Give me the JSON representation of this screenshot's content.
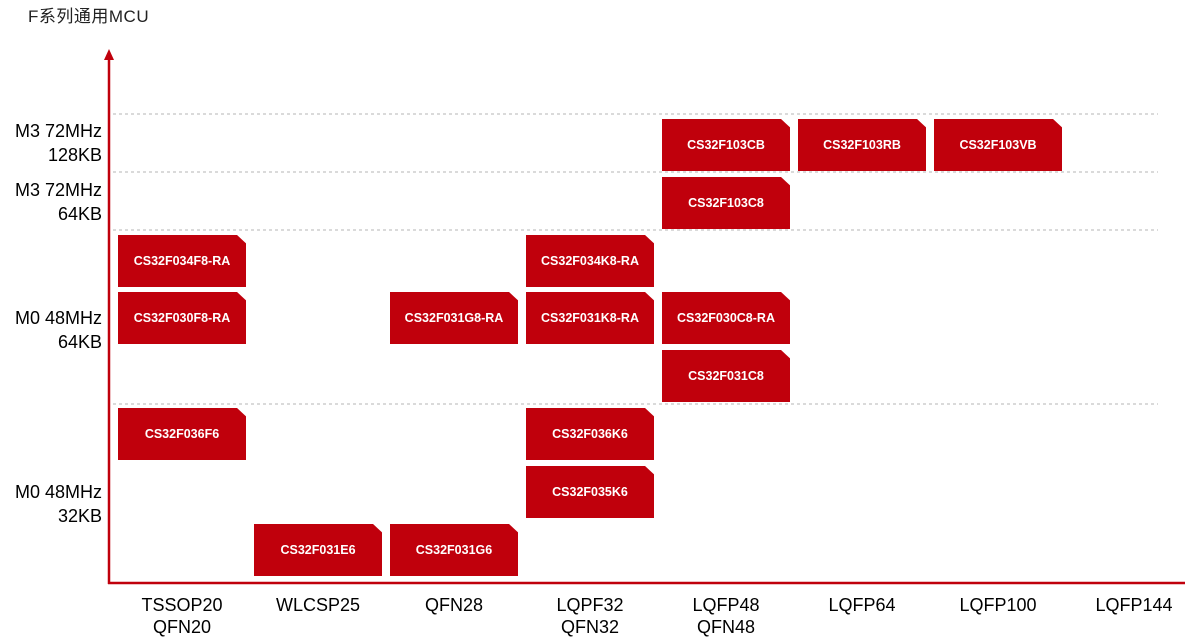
{
  "title": "F系列通用MCU",
  "chart_data": {
    "type": "table",
    "title": "F系列通用MCU",
    "columns": [
      "TSSOP20\nQFN20",
      "WLCSP25",
      "QFN28",
      "LQPF32\nQFN32",
      "LQFP48\nQFN48",
      "LQFP64",
      "LQFP100",
      "LQFP144"
    ],
    "rows": [
      "M3 72MHz\n128KB",
      "M3 72MHz\n64KB",
      "M0 48MHz\n64KB",
      "M0 48MHz\n32KB"
    ],
    "cells": [
      {
        "label": "CS32F103CB",
        "row": "M3 72MHz\n128KB",
        "column": "LQFP48\nQFN48"
      },
      {
        "label": "CS32F103RB",
        "row": "M3 72MHz\n128KB",
        "column": "LQFP64"
      },
      {
        "label": "CS32F103VB",
        "row": "M3 72MHz\n128KB",
        "column": "LQFP100"
      },
      {
        "label": "CS32F103C8",
        "row": "M3 72MHz\n64KB",
        "column": "LQFP48\nQFN48"
      },
      {
        "label": "CS32F034F8-RA",
        "row": "M0 48MHz\n64KB",
        "column": "TSSOP20\nQFN20"
      },
      {
        "label": "CS32F030F8-RA",
        "row": "M0 48MHz\n64KB",
        "column": "TSSOP20\nQFN20"
      },
      {
        "label": "CS32F031G8-RA",
        "row": "M0 48MHz\n64KB",
        "column": "QFN28"
      },
      {
        "label": "CS32F034K8-RA",
        "row": "M0 48MHz\n64KB",
        "column": "LQPF32\nQFN32"
      },
      {
        "label": "CS32F031K8-RA",
        "row": "M0 48MHz\n64KB",
        "column": "LQPF32\nQFN32"
      },
      {
        "label": "CS32F030C8-RA",
        "row": "M0 48MHz\n64KB",
        "column": "LQFP48\nQFN48"
      },
      {
        "label": "CS32F031C8",
        "row": "M0 48MHz\n64KB",
        "column": "LQFP48\nQFN48"
      },
      {
        "label": "CS32F036F6",
        "row": "M0 48MHz\n32KB",
        "column": "TSSOP20\nQFN20"
      },
      {
        "label": "CS32F036K6",
        "row": "M0 48MHz\n32KB",
        "column": "LQPF32\nQFN32"
      },
      {
        "label": "CS32F035K6",
        "row": "M0 48MHz\n32KB",
        "column": "LQPF32\nQFN32"
      },
      {
        "label": "CS32F031E6",
        "row": "M0 48MHz\n32KB",
        "column": "WLCSP25"
      },
      {
        "label": "CS32F031G6",
        "row": "M0 48MHz\n32KB",
        "column": "QFN28"
      }
    ]
  },
  "colors": {
    "chip_fill": "#c0000c",
    "axis": "#c0000c",
    "grid": "#b4b4b4",
    "chip_text": "#ffffff"
  }
}
